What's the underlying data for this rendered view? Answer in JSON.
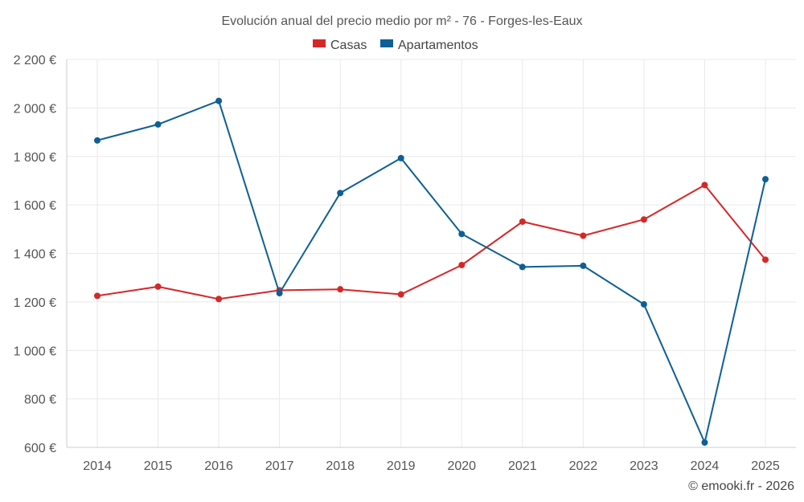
{
  "chart_data": {
    "type": "line",
    "title": "Evolución anual del precio medio por m² - 76 - Forges-les-Eaux",
    "categories": [
      "2014",
      "2015",
      "2016",
      "2017",
      "2018",
      "2019",
      "2020",
      "2021",
      "2022",
      "2023",
      "2024",
      "2025"
    ],
    "series": [
      {
        "name": "Casas",
        "color": "#d62728",
        "values": [
          1225,
          1263,
          1212,
          1248,
          1252,
          1231,
          1352,
          1531,
          1473,
          1540,
          1682,
          1374
        ]
      },
      {
        "name": "Apartamentos",
        "color": "#0e5f94",
        "values": [
          1866,
          1932,
          2029,
          1236,
          1649,
          1793,
          1480,
          1344,
          1349,
          1190,
          620,
          1706
        ]
      }
    ],
    "ylim": [
      600,
      2200
    ],
    "yticks": [
      600,
      800,
      1000,
      1200,
      1400,
      1600,
      1800,
      2000,
      2200
    ],
    "ytick_labels": [
      "600 €",
      "800 €",
      "1 000 €",
      "1 200 €",
      "1 400 €",
      "1 600 €",
      "1 800 €",
      "2 000 €",
      "2 200 €"
    ],
    "xlabel": "",
    "ylabel": "",
    "grid": true,
    "legend_position": "top-center"
  },
  "credit": "© emooki.fr - 2026"
}
